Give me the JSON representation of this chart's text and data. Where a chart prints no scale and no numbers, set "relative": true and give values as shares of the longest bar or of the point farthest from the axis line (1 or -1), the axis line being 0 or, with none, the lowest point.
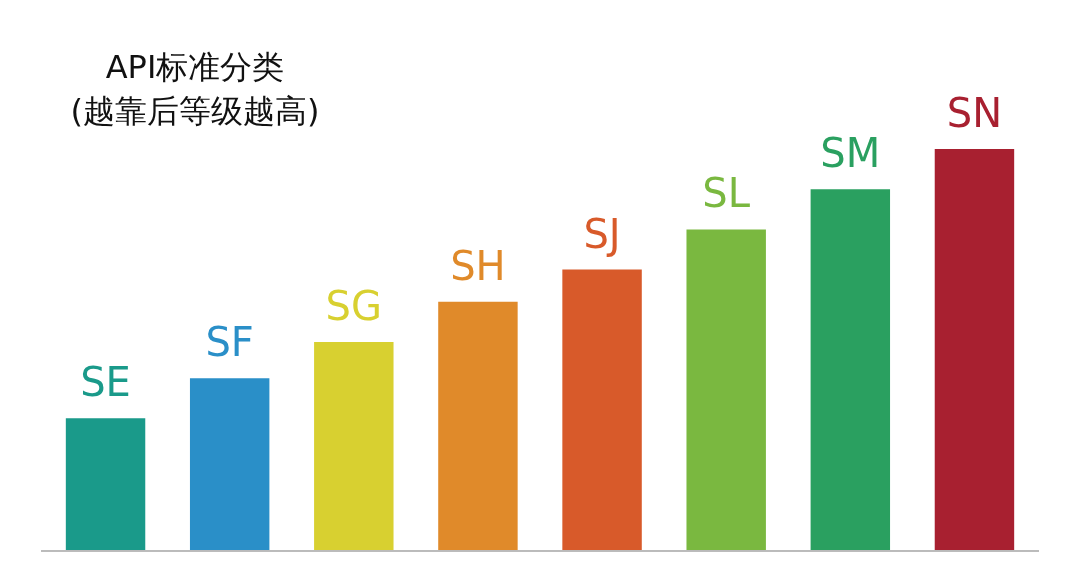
{
  "chart_data": {
    "type": "bar",
    "title": "API标准分类",
    "subtitle": "(越靠后等级越高)",
    "relative": true,
    "categories": [
      "SE",
      "SF",
      "SG",
      "SH",
      "SJ",
      "SL",
      "SM",
      "SN"
    ],
    "values": [
      0.33,
      0.43,
      0.52,
      0.62,
      0.7,
      0.8,
      0.9,
      1
    ],
    "colors": [
      "#1a9a8a",
      "#2a8fc8",
      "#d8d030",
      "#e08a2a",
      "#d85a2a",
      "#7ab840",
      "#2aa060",
      "#a82030"
    ],
    "legend": false
  }
}
